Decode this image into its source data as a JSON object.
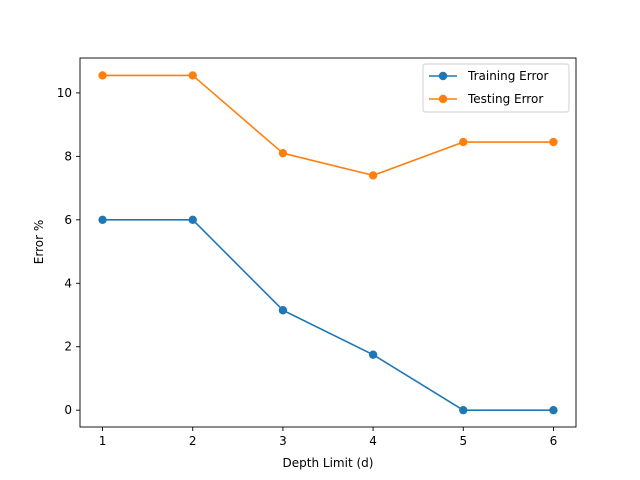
{
  "chart_data": {
    "type": "line",
    "title": "",
    "xlabel": "Depth Limit (d)",
    "ylabel": "Error %",
    "x": [
      1,
      2,
      3,
      4,
      5,
      6
    ],
    "xlim": [
      0.75,
      6.25
    ],
    "ylim": [
      -0.53,
      11.1
    ],
    "xticks": [
      1,
      2,
      3,
      4,
      5,
      6
    ],
    "yticks": [
      0,
      2,
      4,
      6,
      8,
      10
    ],
    "grid": false,
    "legend_position": "top-right",
    "series": [
      {
        "name": "Training Error",
        "color": "#1f77b4",
        "marker": "circle",
        "values": [
          6.0,
          6.0,
          3.15,
          1.75,
          0.0,
          0.0
        ]
      },
      {
        "name": "Testing Error",
        "color": "#ff7f0e",
        "marker": "circle",
        "values": [
          10.55,
          10.55,
          8.1,
          7.4,
          8.45,
          8.45
        ]
      }
    ]
  }
}
